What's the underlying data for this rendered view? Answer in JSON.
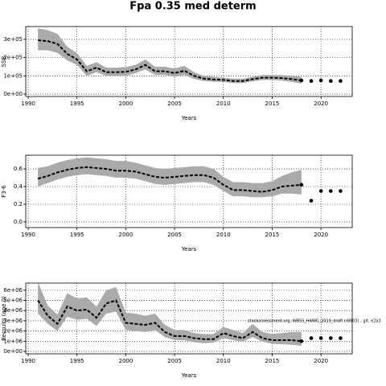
{
  "chart_data": [
    {
      "type": "line",
      "title": "Fpa 0.35 med determ",
      "ylabel": "SSB",
      "xlabel": "Years",
      "x": [
        1991,
        1992,
        1993,
        1994,
        1995,
        1996,
        1997,
        1998,
        1999,
        2000,
        2001,
        2002,
        2003,
        2004,
        2005,
        2006,
        2007,
        2008,
        2009,
        2010,
        2011,
        2012,
        2013,
        2014,
        2015,
        2016,
        2017,
        2018
      ],
      "values": [
        295000,
        290000,
        275000,
        220000,
        190000,
        125000,
        145000,
        120000,
        120000,
        122000,
        135000,
        160000,
        125000,
        125000,
        115000,
        128000,
        100000,
        85000,
        80000,
        78000,
        72000,
        72000,
        82000,
        90000,
        90000,
        88000,
        82000,
        75000
      ],
      "upper": [
        360000,
        350000,
        330000,
        260000,
        225000,
        155000,
        175000,
        145000,
        145000,
        148000,
        160000,
        190000,
        150000,
        150000,
        140000,
        155000,
        120000,
        100000,
        95000,
        90000,
        85000,
        85000,
        95000,
        105000,
        105000,
        105000,
        100000,
        95000
      ],
      "lower": [
        240000,
        240000,
        225000,
        185000,
        160000,
        100000,
        120000,
        100000,
        100000,
        100000,
        115000,
        135000,
        105000,
        105000,
        95000,
        105000,
        83000,
        72000,
        68000,
        66000,
        60000,
        60000,
        70000,
        77000,
        77000,
        74000,
        67000,
        58000
      ],
      "points_x": [
        2018,
        2019,
        2020,
        2021,
        2022
      ],
      "points_values": [
        75000,
        72000,
        75000,
        72000,
        72000
      ],
      "xlim": [
        1989.75,
        2023.2
      ],
      "xticks": [
        1990,
        1995,
        2000,
        2005,
        2010,
        2015,
        2020
      ],
      "ylim": [
        -13000,
        370000
      ],
      "yticks": [
        {
          "value": 0,
          "label": "0e+00"
        },
        {
          "value": 100000,
          "label": "1e+05"
        },
        {
          "value": 200000,
          "label": "2e+05"
        },
        {
          "value": 300000,
          "label": "3e+05"
        }
      ],
      "grid": true,
      "color": "#000000",
      "band_color": "#aaaaaa"
    },
    {
      "type": "line",
      "ylabel": "F3-6",
      "xlabel": "Years",
      "x": [
        1991,
        1992,
        1993,
        1994,
        1995,
        1996,
        1997,
        1998,
        1999,
        2000,
        2001,
        2002,
        2003,
        2004,
        2005,
        2006,
        2007,
        2008,
        2009,
        2010,
        2011,
        2012,
        2013,
        2014,
        2015,
        2016,
        2017,
        2018
      ],
      "values": [
        0.49,
        0.52,
        0.56,
        0.59,
        0.61,
        0.62,
        0.61,
        0.6,
        0.58,
        0.58,
        0.57,
        0.54,
        0.51,
        0.5,
        0.51,
        0.52,
        0.53,
        0.53,
        0.5,
        0.42,
        0.36,
        0.36,
        0.35,
        0.34,
        0.36,
        0.4,
        0.41,
        0.42
      ],
      "upper": [
        0.61,
        0.63,
        0.67,
        0.7,
        0.72,
        0.73,
        0.72,
        0.71,
        0.69,
        0.69,
        0.67,
        0.64,
        0.61,
        0.6,
        0.61,
        0.62,
        0.63,
        0.63,
        0.6,
        0.51,
        0.45,
        0.45,
        0.44,
        0.44,
        0.46,
        0.52,
        0.56,
        0.59
      ],
      "lower": [
        0.4,
        0.44,
        0.48,
        0.51,
        0.53,
        0.54,
        0.53,
        0.52,
        0.5,
        0.5,
        0.49,
        0.46,
        0.43,
        0.42,
        0.43,
        0.44,
        0.45,
        0.45,
        0.42,
        0.35,
        0.29,
        0.29,
        0.28,
        0.28,
        0.29,
        0.32,
        0.32,
        0.31
      ],
      "points_x": [
        2018,
        2019,
        2020,
        2021,
        2022
      ],
      "points_values": [
        0.42,
        0.24,
        0.35,
        0.35,
        0.35
      ],
      "xlim": [
        1989.75,
        2023.2
      ],
      "xticks": [
        1990,
        1995,
        2000,
        2005,
        2010,
        2015,
        2020
      ],
      "ylim": [
        -0.064,
        0.755
      ],
      "yticks": [
        {
          "value": 0,
          "label": "0.0"
        },
        {
          "value": 0.2,
          "label": "0.2"
        },
        {
          "value": 0.4,
          "label": "0.4"
        },
        {
          "value": 0.6,
          "label": "0.6"
        }
      ],
      "grid": true,
      "color": "#000000",
      "band_color": "#aaaaaa"
    },
    {
      "type": "line",
      "ylabel": "Recruits (age 0)",
      "xlabel": "Years",
      "annotation": "stockassessment.org, WBSS_HAWG_2019_draft (r8803) , git: e2a3",
      "x": [
        1991,
        1992,
        1993,
        1994,
        1995,
        1996,
        1997,
        1998,
        1999,
        2000,
        2001,
        2002,
        2003,
        2004,
        2005,
        2006,
        2007,
        2008,
        2009,
        2010,
        2011,
        2012,
        2013,
        2014,
        2015,
        2016,
        2017,
        2018
      ],
      "values": [
        5000000,
        3500000,
        2700000,
        4400000,
        4000000,
        4100000,
        3300000,
        4700000,
        5000000,
        2800000,
        2700000,
        2600000,
        2800000,
        1900000,
        1500000,
        1500000,
        1300000,
        1200000,
        1200000,
        1800000,
        1500000,
        1300000,
        1900000,
        1300000,
        1100000,
        1100000,
        1100000,
        1000000
      ],
      "upper": [
        6800000,
        4500000,
        3600000,
        5700000,
        5200000,
        5300000,
        4400000,
        6000000,
        6300000,
        3800000,
        3700000,
        3500000,
        3700000,
        2600000,
        2100000,
        2100000,
        1800000,
        1700000,
        1700000,
        2400000,
        2100000,
        1800000,
        2700000,
        1900000,
        1700000,
        1800000,
        1900000,
        1900000
      ],
      "lower": [
        3700000,
        2700000,
        2000000,
        3400000,
        3100000,
        3200000,
        2500000,
        3700000,
        3900000,
        2100000,
        2000000,
        1900000,
        2100000,
        1400000,
        1100000,
        1100000,
        900000,
        800000,
        850000,
        1300000,
        1100000,
        950000,
        1400000,
        950000,
        750000,
        700000,
        650000,
        550000
      ],
      "points_x": [
        2018,
        2019,
        2020,
        2021,
        2022
      ],
      "points_values": [
        1000000,
        1300000,
        1300000,
        1300000,
        1300000
      ],
      "xlim": [
        1989.75,
        2023.2
      ],
      "xticks": [
        1990,
        1995,
        2000,
        2005,
        2010,
        2015,
        2020
      ],
      "ylim": [
        -240000,
        6700000
      ],
      "yticks": [
        {
          "value": 0,
          "label": "0e+00"
        },
        {
          "value": 1000000,
          "label": "1e+06"
        },
        {
          "value": 2000000,
          "label": "2e+06"
        },
        {
          "value": 3000000,
          "label": "3e+06"
        },
        {
          "value": 4000000,
          "label": "4e+06"
        },
        {
          "value": 5000000,
          "label": "5e+06"
        },
        {
          "value": 6000000,
          "label": "6e+06"
        }
      ],
      "grid": true,
      "color": "#000000",
      "band_color": "#aaaaaa"
    }
  ]
}
